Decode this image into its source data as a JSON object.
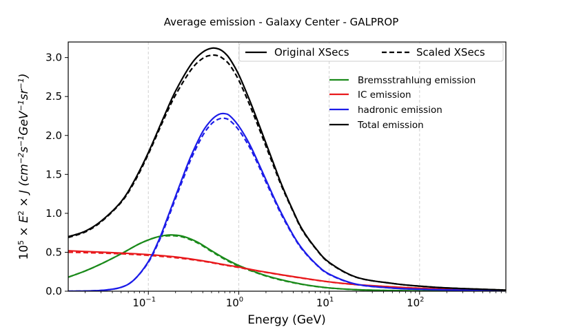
{
  "chart_data": {
    "type": "line",
    "title": "Average emission - Galaxy Center - GALPROP",
    "xlabel": "Energy (GeV)",
    "ylabel": "10^5 × E^2 × J (cm^-2 s^-1 GeV^-1 sr^-1)",
    "xscale": "log",
    "xlim": [
      0.013,
      900
    ],
    "ylim": [
      0,
      3.2
    ],
    "xticks": [
      {
        "value": 0.1,
        "label": "10",
        "exp": "−1"
      },
      {
        "value": 1,
        "label": "10",
        "exp": "0"
      },
      {
        "value": 10,
        "label": "10",
        "exp": "1"
      },
      {
        "value": 100,
        "label": "10",
        "exp": "2"
      }
    ],
    "yticks": [
      {
        "value": 0,
        "label": "0.0"
      },
      {
        "value": 0.5,
        "label": "0.5"
      },
      {
        "value": 1.0,
        "label": "1.0"
      },
      {
        "value": 1.5,
        "label": "1.5"
      },
      {
        "value": 2.0,
        "label": "2.0"
      },
      {
        "value": 2.5,
        "label": "2.5"
      },
      {
        "value": 3.0,
        "label": "3.0"
      }
    ],
    "grid": "x-dashed",
    "style_legend": {
      "position": "top-right",
      "entries": [
        {
          "label": "Original XSecs",
          "style": "solid"
        },
        {
          "label": "Scaled XSecs",
          "style": "dashed"
        }
      ]
    },
    "color_legend": {
      "position": "upper-right",
      "entries": [
        {
          "label": "Bremsstrahlung emission",
          "color": "#1a8a1a"
        },
        {
          "label": "IC emission",
          "color": "#e8191c"
        },
        {
          "label": "hadronic emission",
          "color": "#1c1ce8"
        },
        {
          "label": "Total emission",
          "color": "#000000"
        }
      ]
    },
    "series": [
      {
        "name": "Bremsstrahlung emission",
        "variant": "Original XSecs",
        "color": "#1a8a1a",
        "dash": false,
        "x": [
          0.013,
          0.02,
          0.03,
          0.05,
          0.08,
          0.12,
          0.16,
          0.2,
          0.25,
          0.35,
          0.5,
          0.7,
          1,
          1.5,
          2,
          3,
          5,
          8,
          12,
          20,
          40,
          100,
          300,
          900
        ],
        "y": [
          0.18,
          0.26,
          0.35,
          0.48,
          0.61,
          0.69,
          0.72,
          0.72,
          0.7,
          0.63,
          0.52,
          0.42,
          0.33,
          0.25,
          0.2,
          0.145,
          0.09,
          0.055,
          0.035,
          0.02,
          0.01,
          0.004,
          0.001,
          0.0
        ]
      },
      {
        "name": "Bremsstrahlung emission",
        "variant": "Scaled XSecs",
        "color": "#1a8a1a",
        "dash": true,
        "x": [
          0.013,
          0.02,
          0.03,
          0.05,
          0.08,
          0.12,
          0.16,
          0.2,
          0.25,
          0.35,
          0.5,
          0.7,
          1,
          1.5,
          2,
          3,
          5,
          8,
          12,
          20,
          40,
          100,
          300,
          900
        ],
        "y": [
          0.18,
          0.26,
          0.35,
          0.48,
          0.61,
          0.69,
          0.71,
          0.71,
          0.69,
          0.62,
          0.51,
          0.41,
          0.32,
          0.245,
          0.195,
          0.14,
          0.088,
          0.053,
          0.034,
          0.019,
          0.01,
          0.004,
          0.001,
          0.0
        ]
      },
      {
        "name": "IC emission",
        "variant": "Original XSecs",
        "color": "#e8191c",
        "dash": false,
        "x": [
          0.013,
          0.02,
          0.05,
          0.1,
          0.2,
          0.4,
          0.7,
          1,
          1.5,
          2,
          3,
          5,
          10,
          20,
          50,
          100,
          200,
          500,
          900
        ],
        "y": [
          0.52,
          0.51,
          0.49,
          0.47,
          0.44,
          0.39,
          0.34,
          0.31,
          0.27,
          0.245,
          0.21,
          0.17,
          0.12,
          0.085,
          0.055,
          0.038,
          0.026,
          0.014,
          0.01
        ]
      },
      {
        "name": "IC emission",
        "variant": "Scaled XSecs",
        "color": "#e8191c",
        "dash": true,
        "x": [
          0.013,
          0.02,
          0.05,
          0.1,
          0.2,
          0.4,
          0.7,
          1,
          1.5,
          2,
          3,
          5,
          10,
          20,
          50,
          100,
          200,
          500,
          900
        ],
        "y": [
          0.5,
          0.495,
          0.48,
          0.46,
          0.43,
          0.385,
          0.335,
          0.305,
          0.267,
          0.242,
          0.208,
          0.168,
          0.119,
          0.084,
          0.055,
          0.038,
          0.026,
          0.014,
          0.01
        ]
      },
      {
        "name": "hadronic emission",
        "variant": "Original XSecs",
        "color": "#1c1ce8",
        "dash": false,
        "x": [
          0.013,
          0.03,
          0.05,
          0.07,
          0.1,
          0.13,
          0.16,
          0.2,
          0.25,
          0.3,
          0.4,
          0.5,
          0.6,
          0.7,
          0.8,
          1,
          1.3,
          1.6,
          2,
          2.5,
          3,
          4,
          5,
          7,
          10,
          20,
          50,
          100,
          300,
          900
        ],
        "y": [
          0.0,
          0.01,
          0.05,
          0.15,
          0.38,
          0.65,
          0.92,
          1.22,
          1.52,
          1.75,
          2.05,
          2.2,
          2.27,
          2.28,
          2.25,
          2.12,
          1.9,
          1.68,
          1.43,
          1.18,
          0.99,
          0.72,
          0.55,
          0.36,
          0.22,
          0.09,
          0.04,
          0.025,
          0.012,
          0.005
        ]
      },
      {
        "name": "hadronic emission",
        "variant": "Scaled XSecs",
        "color": "#1c1ce8",
        "dash": true,
        "x": [
          0.013,
          0.03,
          0.05,
          0.07,
          0.1,
          0.13,
          0.16,
          0.2,
          0.25,
          0.3,
          0.4,
          0.5,
          0.6,
          0.7,
          0.8,
          1,
          1.3,
          1.6,
          2,
          2.5,
          3,
          4,
          5,
          7,
          10,
          20,
          50,
          100,
          300,
          900
        ],
        "y": [
          0.0,
          0.01,
          0.05,
          0.15,
          0.37,
          0.63,
          0.89,
          1.19,
          1.48,
          1.71,
          2.0,
          2.15,
          2.21,
          2.22,
          2.19,
          2.07,
          1.86,
          1.65,
          1.4,
          1.16,
          0.97,
          0.71,
          0.54,
          0.355,
          0.215,
          0.088,
          0.04,
          0.025,
          0.012,
          0.005
        ]
      },
      {
        "name": "Total emission",
        "variant": "Original XSecs",
        "color": "#000000",
        "dash": false,
        "x": [
          0.013,
          0.02,
          0.03,
          0.05,
          0.07,
          0.1,
          0.15,
          0.2,
          0.3,
          0.4,
          0.5,
          0.6,
          0.7,
          0.8,
          1,
          1.3,
          1.6,
          2,
          2.5,
          3,
          4,
          5,
          7,
          10,
          20,
          50,
          100,
          200,
          500,
          900
        ],
        "y": [
          0.7,
          0.77,
          0.9,
          1.15,
          1.42,
          1.78,
          2.25,
          2.57,
          2.92,
          3.07,
          3.12,
          3.11,
          3.06,
          2.98,
          2.78,
          2.47,
          2.2,
          1.9,
          1.6,
          1.36,
          1.03,
          0.8,
          0.56,
          0.37,
          0.18,
          0.1,
          0.065,
          0.042,
          0.025,
          0.015
        ]
      },
      {
        "name": "Total emission",
        "variant": "Scaled XSecs",
        "color": "#000000",
        "dash": true,
        "x": [
          0.013,
          0.02,
          0.03,
          0.05,
          0.07,
          0.1,
          0.15,
          0.2,
          0.3,
          0.4,
          0.5,
          0.6,
          0.7,
          0.8,
          1,
          1.3,
          1.6,
          2,
          2.5,
          3,
          4,
          5,
          7,
          10,
          20,
          50,
          100,
          200,
          500,
          900
        ],
        "y": [
          0.69,
          0.76,
          0.89,
          1.14,
          1.4,
          1.76,
          2.22,
          2.52,
          2.85,
          2.99,
          3.03,
          3.02,
          2.97,
          2.9,
          2.71,
          2.41,
          2.15,
          1.86,
          1.57,
          1.34,
          1.02,
          0.79,
          0.555,
          0.365,
          0.178,
          0.1,
          0.065,
          0.042,
          0.025,
          0.015
        ]
      }
    ]
  }
}
